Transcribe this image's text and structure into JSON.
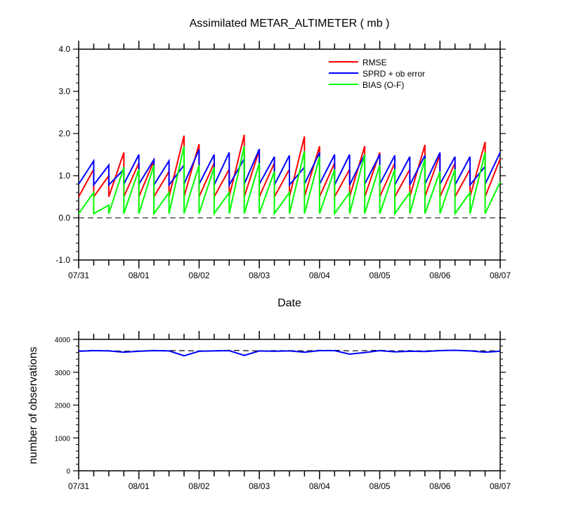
{
  "chart_data": [
    {
      "type": "line",
      "title": "Assimilated METAR_ALTIMETER ( mb )",
      "xlabel": "Date",
      "ylabel": "",
      "ylim": [
        -1.0,
        4.0
      ],
      "yticks": [
        "-1.0",
        "0.0",
        "1.0",
        "2.0",
        "3.0",
        "4.0"
      ],
      "xlim": [
        0,
        7
      ],
      "xticks": [
        "07/31",
        "08/01",
        "08/02",
        "08/03",
        "08/04",
        "08/05",
        "08/06",
        "08/07"
      ],
      "zero_line": "dashed",
      "legend_placement": "top-right",
      "series": [
        {
          "name": "RMSE",
          "color": "#ff0000",
          "x": [
            0,
            0.25,
            0.25,
            0.5,
            0.5,
            0.75,
            0.75,
            1.0,
            1.0,
            1.25,
            1.25,
            1.5,
            1.5,
            1.75,
            1.75,
            2.0,
            2.0,
            2.25,
            2.25,
            2.5,
            2.5,
            2.75,
            2.75,
            3.0,
            3.0,
            3.25,
            3.25,
            3.5,
            3.5,
            3.75,
            3.75,
            4.0,
            4.0,
            4.25,
            4.25,
            4.5,
            4.5,
            4.75,
            4.75,
            5.0,
            5.0,
            5.25,
            5.25,
            5.5,
            5.5,
            5.75,
            5.75,
            6.0,
            6.0,
            6.25,
            6.25,
            6.5,
            6.5,
            6.75,
            6.75,
            7.0
          ],
          "y": [
            0.5,
            1.15,
            0.5,
            1.0,
            0.5,
            1.55,
            0.5,
            1.3,
            0.5,
            1.35,
            0.5,
            1.1,
            0.5,
            1.95,
            0.5,
            1.75,
            0.5,
            1.3,
            0.5,
            1.15,
            0.5,
            1.97,
            0.5,
            1.6,
            0.5,
            1.3,
            0.5,
            1.15,
            0.5,
            1.93,
            0.5,
            1.7,
            0.5,
            1.3,
            0.5,
            1.15,
            0.5,
            1.7,
            0.5,
            1.55,
            0.5,
            1.3,
            0.5,
            1.15,
            0.5,
            1.73,
            0.5,
            1.5,
            0.5,
            1.3,
            0.5,
            1.15,
            0.5,
            1.8,
            0.5,
            1.4
          ]
        },
        {
          "name": "SPRD + ob error",
          "color": "#0000ff",
          "x": [
            0,
            0.25,
            0.25,
            0.5,
            0.5,
            0.75,
            0.75,
            1.0,
            1.0,
            1.25,
            1.25,
            1.5,
            1.5,
            1.75,
            1.75,
            2.0,
            2.0,
            2.25,
            2.25,
            2.5,
            2.5,
            2.75,
            2.75,
            3.0,
            3.0,
            3.25,
            3.25,
            3.5,
            3.5,
            3.75,
            3.75,
            4.0,
            4.0,
            4.25,
            4.25,
            4.5,
            4.5,
            4.75,
            4.75,
            5.0,
            5.0,
            5.25,
            5.25,
            5.5,
            5.5,
            5.75,
            5.75,
            6.0,
            6.0,
            6.25,
            6.25,
            6.5,
            6.5,
            6.75,
            6.75,
            7.0
          ],
          "y": [
            0.8,
            1.35,
            0.78,
            1.25,
            0.78,
            1.15,
            0.8,
            1.5,
            0.8,
            1.38,
            0.78,
            1.35,
            0.78,
            1.25,
            0.8,
            1.62,
            0.8,
            1.5,
            0.78,
            1.55,
            0.78,
            1.4,
            0.8,
            1.63,
            0.8,
            1.45,
            0.78,
            1.48,
            0.78,
            1.2,
            0.8,
            1.55,
            0.8,
            1.5,
            0.78,
            1.5,
            0.78,
            1.5,
            0.8,
            1.5,
            0.8,
            1.48,
            0.78,
            1.45,
            0.78,
            1.48,
            0.8,
            1.55,
            0.8,
            1.45,
            0.78,
            1.45,
            0.78,
            1.22,
            0.8,
            1.55
          ]
        },
        {
          "name": "BIAS (O-F)",
          "color": "#00ff00",
          "x": [
            0,
            0.25,
            0.25,
            0.5,
            0.5,
            0.75,
            0.75,
            1.0,
            1.0,
            1.25,
            1.25,
            1.5,
            1.5,
            1.75,
            1.75,
            2.0,
            2.0,
            2.25,
            2.25,
            2.5,
            2.5,
            2.75,
            2.75,
            3.0,
            3.0,
            3.25,
            3.25,
            3.5,
            3.5,
            3.75,
            3.75,
            4.0,
            4.0,
            4.25,
            4.25,
            4.5,
            4.5,
            4.75,
            4.75,
            5.0,
            5.0,
            5.25,
            5.25,
            5.5,
            5.5,
            5.75,
            5.75,
            6.0,
            6.0,
            6.25,
            6.25,
            6.5,
            6.5,
            6.75,
            6.75,
            7.0
          ],
          "y": [
            0.1,
            0.6,
            0.1,
            0.3,
            0.1,
            1.2,
            0.1,
            1.15,
            0.1,
            1.25,
            0.1,
            0.6,
            0.1,
            1.7,
            0.1,
            1.25,
            0.1,
            1.2,
            0.1,
            0.6,
            0.1,
            1.7,
            0.1,
            1.3,
            0.1,
            1.1,
            0.1,
            0.6,
            0.1,
            1.58,
            0.1,
            1.45,
            0.1,
            1.15,
            0.1,
            0.6,
            0.1,
            1.5,
            0.1,
            1.25,
            0.1,
            1.15,
            0.1,
            0.6,
            0.1,
            1.4,
            0.1,
            1.1,
            0.1,
            1.15,
            0.1,
            0.6,
            0.1,
            1.55,
            0.1,
            0.85
          ]
        }
      ]
    },
    {
      "type": "line",
      "title": "",
      "xlabel": "",
      "ylabel": "number of observations",
      "ylim": [
        0,
        4100
      ],
      "yticks": [
        "0",
        "1000",
        "2000",
        "3000",
        "4000"
      ],
      "xlim": [
        0,
        7
      ],
      "xticks": [
        "07/31",
        "08/01",
        "08/02",
        "08/03",
        "08/04",
        "08/05",
        "08/06",
        "08/07"
      ],
      "series": [
        {
          "style": "dashed",
          "color": "#000000",
          "x": [
            0,
            0.25,
            0.5,
            0.75,
            1.0,
            1.25,
            1.5,
            1.75,
            2.0,
            2.25,
            2.5,
            2.75,
            3.0,
            3.25,
            3.5,
            3.75,
            4.0,
            4.25,
            4.5,
            4.75,
            5.0,
            5.25,
            5.5,
            5.75,
            6.0,
            6.25,
            6.5,
            6.75,
            7.0
          ],
          "y": [
            3740,
            3760,
            3750,
            3730,
            3740,
            3760,
            3750,
            3750,
            3740,
            3750,
            3760,
            3750,
            3740,
            3750,
            3750,
            3740,
            3760,
            3760,
            3740,
            3750,
            3760,
            3740,
            3750,
            3740,
            3760,
            3760,
            3750,
            3740,
            3740
          ]
        },
        {
          "style": "solid",
          "color": "#0000ff",
          "x": [
            0,
            0.25,
            0.5,
            0.75,
            1.0,
            1.25,
            1.5,
            1.75,
            2.0,
            2.25,
            2.5,
            2.75,
            3.0,
            3.25,
            3.5,
            3.75,
            4.0,
            4.25,
            4.5,
            4.75,
            5.0,
            5.25,
            5.5,
            5.75,
            6.0,
            6.25,
            6.5,
            6.75,
            7.0
          ],
          "y": [
            3730,
            3750,
            3740,
            3700,
            3730,
            3750,
            3740,
            3590,
            3730,
            3740,
            3750,
            3600,
            3740,
            3730,
            3740,
            3700,
            3750,
            3750,
            3640,
            3690,
            3750,
            3710,
            3730,
            3720,
            3750,
            3760,
            3740,
            3700,
            3730
          ]
        }
      ]
    }
  ]
}
